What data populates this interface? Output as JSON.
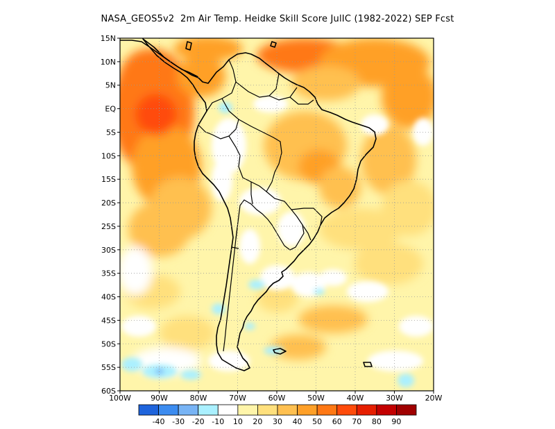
{
  "title": "NASA_GEOS5v2  2m Air Temp. Heidke Skill Score JulIC (1982-2022) SEP Fcst",
  "map": {
    "lat_ticks": [
      "15N",
      "10N",
      "5N",
      "EQ",
      "5S",
      "10S",
      "15S",
      "20S",
      "25S",
      "30S",
      "35S",
      "40S",
      "45S",
      "50S",
      "55S",
      "60S"
    ],
    "lon_ticks": [
      "100W",
      "90W",
      "80W",
      "70W",
      "60W",
      "50W",
      "40W",
      "30W",
      "20W"
    ],
    "lat_range": [
      -60,
      15
    ],
    "lon_range": [
      -100,
      -20
    ],
    "grid": "dotted",
    "land_outline_color": "#000000"
  },
  "colorbar": {
    "colors": [
      "#1e64dc",
      "#3c8cf0",
      "#78b4f5",
      "#aaf0ff",
      "#ffffff",
      "#fff5aa",
      "#ffe07d",
      "#ffc050",
      "#ffa028",
      "#ff7814",
      "#ff4b0a",
      "#e61e00",
      "#c30000",
      "#a00000"
    ],
    "labels": [
      "-40",
      "-30",
      "-20",
      "-10",
      "10",
      "20",
      "30",
      "40",
      "50",
      "60",
      "70",
      "80",
      "90"
    ]
  },
  "colorbar_placement": "bottom"
}
